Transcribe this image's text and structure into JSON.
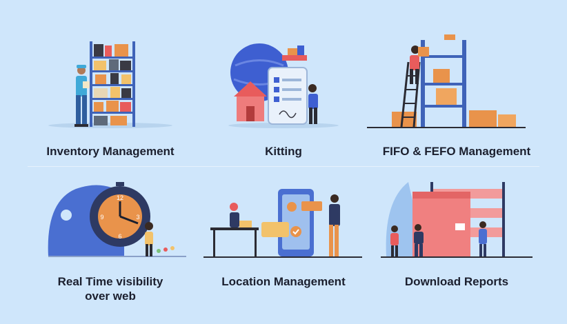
{
  "features": [
    {
      "label": "Inventory Management",
      "icon": "warehouse-shelf-worker-icon"
    },
    {
      "label": "Kitting",
      "icon": "kitting-checklist-icon"
    },
    {
      "label": "FIFO & FEFO Management",
      "icon": "stacked-boxes-ladder-icon"
    },
    {
      "label": "Real Time visibility over web",
      "line1": "Real Time visibility",
      "line2": "over web",
      "icon": "clock-visibility-icon"
    },
    {
      "label": "Location Management",
      "icon": "location-map-phone-icon"
    },
    {
      "label": "Download Reports",
      "icon": "report-boxes-icon"
    }
  ],
  "colors": {
    "background": "#cfe6fb",
    "text": "#1b1f2e",
    "shelf_blue": "#3f63b8",
    "box_orange": "#e9934b",
    "accent_red": "#e85c5c",
    "globe_blue": "#3e5fd1",
    "clock_navy": "#2e3a63"
  }
}
